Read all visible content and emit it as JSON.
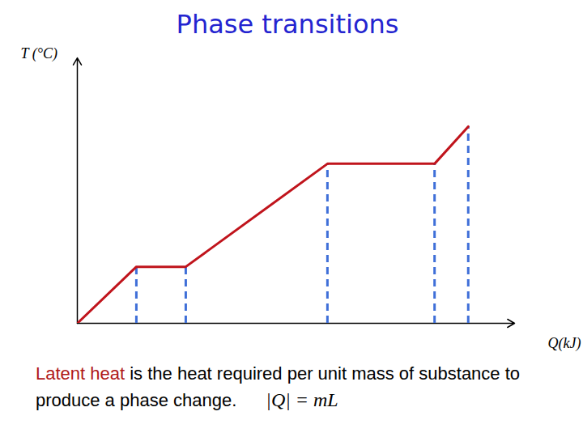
{
  "chart_data": {
    "type": "line",
    "title": "Phase transitions",
    "x_label": "Q(kJ)",
    "y_label": "T (°C)",
    "x": [
      0,
      13.5,
      24.8,
      57.2,
      81.7,
      89.4
    ],
    "values": [
      0,
      21.3,
      21.3,
      60.1,
      60.1,
      74.1
    ],
    "color": "#c0141c",
    "xlim": [
      0,
      100
    ],
    "ylim": [
      0,
      100
    ],
    "xticks": [],
    "yticks": [],
    "tick_labels": false,
    "caption_highlight": "Latent heat",
    "caption": "is the heat required per unit mass of substance to produce a phase change.",
    "formula": "|Q| = mL"
  }
}
